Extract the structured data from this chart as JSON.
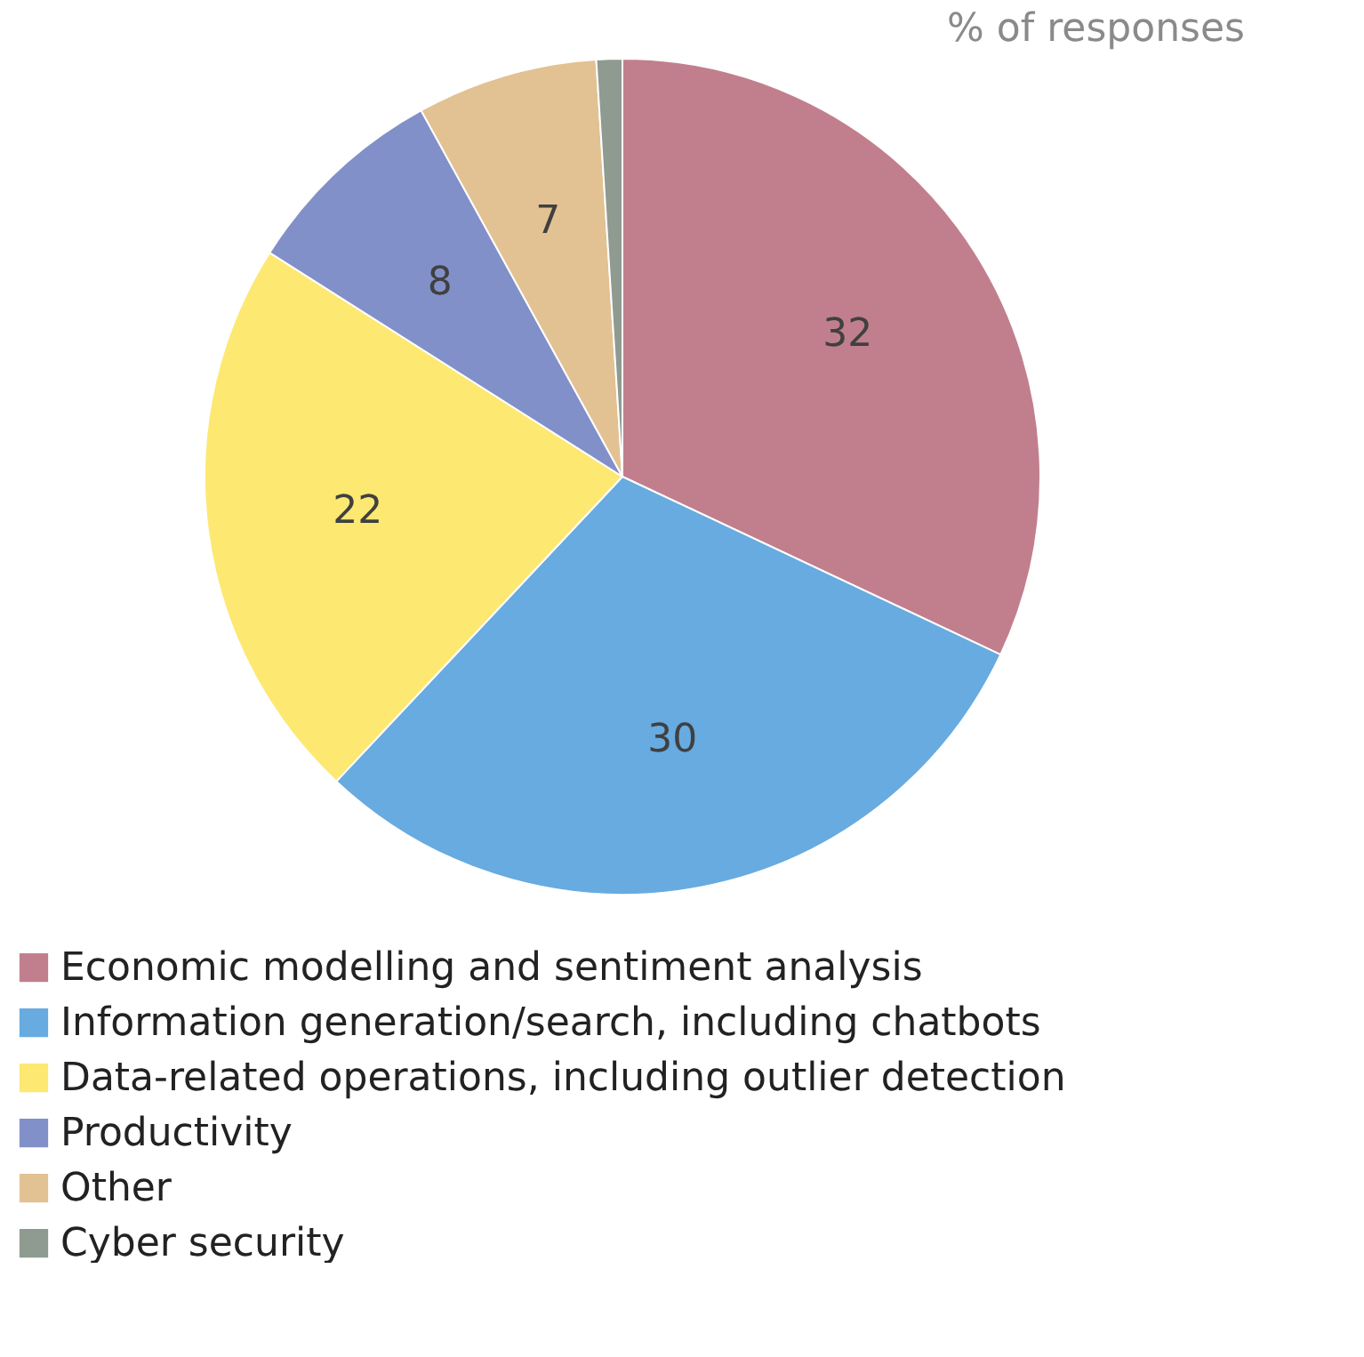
{
  "chart_data": {
    "type": "pie",
    "subtitle": "% of responses",
    "categories": [
      "Economic modelling and sentiment analysis",
      "Information generation/search, including chatbots",
      "Data-related operations, including outlier detection",
      "Productivity",
      "Other",
      "Cyber security"
    ],
    "values": [
      32,
      30,
      22,
      8,
      7,
      1
    ],
    "colors": [
      "#c17f8e",
      "#67abe0",
      "#fde872",
      "#8190c8",
      "#e2c193",
      "#8f9a91"
    ],
    "value_labels": [
      "32",
      "30",
      "22",
      "8",
      "7",
      null
    ],
    "legend": "bottom left"
  }
}
